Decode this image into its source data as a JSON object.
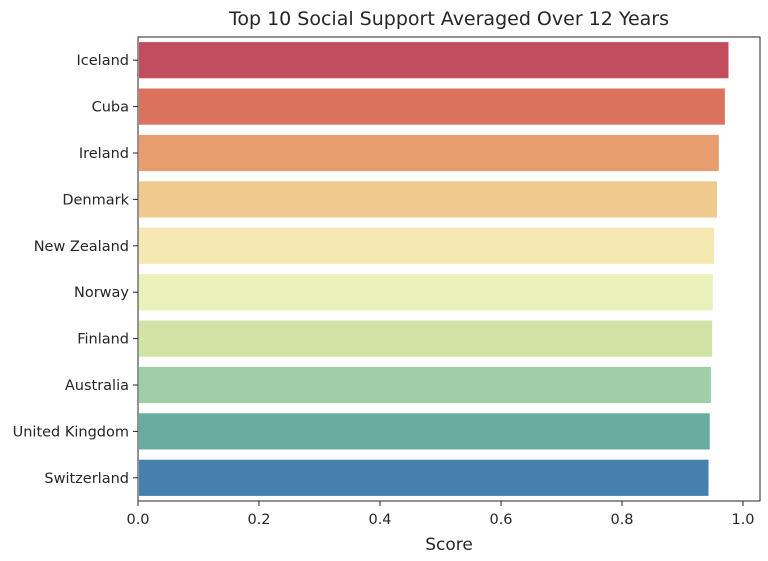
{
  "chart_data": {
    "type": "bar",
    "orientation": "horizontal",
    "title": "Top 10 Social Support Averaged Over 12 Years",
    "xlabel": "Score",
    "ylabel": "",
    "xlim": [
      0,
      1.0
    ],
    "xticks": [
      "0.0",
      "0.2",
      "0.4",
      "0.6",
      "0.8",
      "1.0"
    ],
    "grid": false,
    "categories": [
      "Iceland",
      "Cuba",
      "Ireland",
      "Denmark",
      "New Zealand",
      "Norway",
      "Finland",
      "Australia",
      "United Kingdom",
      "Switzerland"
    ],
    "values": [
      0.976,
      0.97,
      0.96,
      0.957,
      0.952,
      0.95,
      0.949,
      0.947,
      0.945,
      0.943
    ],
    "colors": [
      "#c24d5f",
      "#da725e",
      "#e89d6e",
      "#efc98d",
      "#f5e9b1",
      "#ebf1ba",
      "#d2e4a5",
      "#a0cea7",
      "#68ac9f",
      "#4680ae"
    ]
  }
}
